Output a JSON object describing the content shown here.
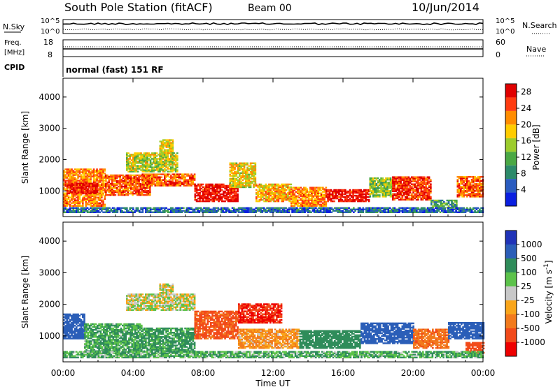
{
  "header": {
    "station": "South Pole Station (fitACF)",
    "beam": "Beam 00",
    "date": "10/Jun/2014"
  },
  "noise_panel": {
    "left_label": "N.Sky",
    "right_label": "N.Search",
    "left_ticks": [
      "10^5",
      "10^0"
    ],
    "right_ticks": [
      "10^5",
      "10^0"
    ]
  },
  "freq_panel": {
    "left_label_1": "Freq.",
    "left_label_2": "[MHz]",
    "right_label": "Nave",
    "left_ticks": [
      "18",
      "8"
    ],
    "right_ticks": [
      "60",
      "0"
    ]
  },
  "cpid_panel": {
    "label": "CPID",
    "text": "normal (fast) 151 RF"
  },
  "colors": {
    "power_scale": [
      "#0a1fe0",
      "#2a5cc0",
      "#2c8a6a",
      "#4aa844",
      "#9ccc2c",
      "#ffcc00",
      "#ff8c00",
      "#ff3b10",
      "#e00000"
    ],
    "velocity_scale": [
      "#ee0000",
      "#f24a1a",
      "#f27a1c",
      "#f9a51a",
      "#c8c8c8",
      "#5cc24a",
      "#2f8c5a",
      "#2b5eb8",
      "#2033b8"
    ]
  },
  "chart_data": [
    {
      "type": "heatmap",
      "title": "Power",
      "ylabel": "Slant Range [km]",
      "xlabel": "Time UT",
      "x_ticks": [
        "00:00",
        "04:00",
        "08:00",
        "12:00",
        "16:00",
        "20:00",
        "00:00"
      ],
      "xlim_hours": [
        0,
        24
      ],
      "ylim_km": [
        180,
        4600
      ],
      "y_ticks": [
        1000,
        2000,
        3000,
        4000
      ],
      "colorbar": {
        "label": "Power [dB]",
        "ticks": [
          4,
          8,
          12,
          16,
          20,
          24,
          28
        ],
        "range": [
          0,
          30
        ]
      },
      "echo_regions": [
        {
          "t0": 0.0,
          "t1": 2.4,
          "r0": 500,
          "r1": 1700,
          "v": 22
        },
        {
          "t0": 0.2,
          "t1": 2.0,
          "r0": 900,
          "r1": 1250,
          "v": 28
        },
        {
          "t0": 2.4,
          "t1": 5.0,
          "r0": 850,
          "r1": 1500,
          "v": 24
        },
        {
          "t0": 3.6,
          "t1": 6.5,
          "r0": 1600,
          "r1": 2200,
          "v": 16
        },
        {
          "t0": 5.5,
          "t1": 6.3,
          "r0": 2200,
          "r1": 2650,
          "v": 18
        },
        {
          "t0": 4.5,
          "t1": 7.5,
          "r0": 1150,
          "r1": 1550,
          "v": 24
        },
        {
          "t0": 7.5,
          "t1": 10.0,
          "r0": 650,
          "r1": 1200,
          "v": 28
        },
        {
          "t0": 9.5,
          "t1": 11.0,
          "r0": 1100,
          "r1": 1900,
          "v": 18
        },
        {
          "t0": 11.0,
          "t1": 13.0,
          "r0": 650,
          "r1": 1200,
          "v": 20
        },
        {
          "t0": 13.0,
          "t1": 15.0,
          "r0": 500,
          "r1": 1100,
          "v": 22
        },
        {
          "t0": 15.0,
          "t1": 17.5,
          "r0": 650,
          "r1": 1050,
          "v": 28
        },
        {
          "t0": 17.5,
          "t1": 18.8,
          "r0": 800,
          "r1": 1400,
          "v": 14
        },
        {
          "t0": 18.8,
          "t1": 21.0,
          "r0": 700,
          "r1": 1450,
          "v": 26
        },
        {
          "t0": 21.0,
          "t1": 22.5,
          "r0": 450,
          "r1": 700,
          "v": 10
        },
        {
          "t0": 22.5,
          "t1": 24.0,
          "r0": 800,
          "r1": 1450,
          "v": 24
        },
        {
          "t0": 0.0,
          "t1": 24.0,
          "r0": 300,
          "r1": 450,
          "v": 6
        }
      ]
    },
    {
      "type": "heatmap",
      "title": "Velocity",
      "ylabel": "Slant Range [km]",
      "xlabel": "Time UT",
      "x_ticks": [
        "00:00",
        "04:00",
        "08:00",
        "12:00",
        "16:00",
        "20:00",
        "00:00"
      ],
      "xlim_hours": [
        0,
        24
      ],
      "ylim_km": [
        180,
        4600
      ],
      "y_ticks": [
        1000,
        2000,
        3000,
        4000
      ],
      "colorbar": {
        "label": "Velocity [m s^-1]",
        "ticks": [
          1000,
          500,
          100,
          25,
          -25,
          -100,
          -500,
          -1000
        ],
        "range": [
          -1000,
          1000
        ]
      },
      "echo_regions": [
        {
          "t0": 0.0,
          "t1": 1.2,
          "r0": 900,
          "r1": 1700,
          "v": 800
        },
        {
          "t0": 1.2,
          "t1": 4.5,
          "r0": 500,
          "r1": 1400,
          "v": 120
        },
        {
          "t0": 3.6,
          "t1": 7.5,
          "r0": 1800,
          "r1": 2300,
          "v": 0
        },
        {
          "t0": 5.5,
          "t1": 6.3,
          "r0": 2300,
          "r1": 2650,
          "v": 0
        },
        {
          "t0": 4.5,
          "t1": 7.5,
          "r0": 500,
          "r1": 1250,
          "v": 150
        },
        {
          "t0": 7.5,
          "t1": 10.0,
          "r0": 900,
          "r1": 1800,
          "v": -300
        },
        {
          "t0": 10.0,
          "t1": 12.5,
          "r0": 1400,
          "r1": 2000,
          "v": -500
        },
        {
          "t0": 10.0,
          "t1": 13.5,
          "r0": 600,
          "r1": 1200,
          "v": -100
        },
        {
          "t0": 13.5,
          "t1": 17.0,
          "r0": 600,
          "r1": 1150,
          "v": 200
        },
        {
          "t0": 17.0,
          "t1": 20.0,
          "r0": 750,
          "r1": 1400,
          "v": 600
        },
        {
          "t0": 20.0,
          "t1": 22.0,
          "r0": 600,
          "r1": 1200,
          "v": -200
        },
        {
          "t0": 22.0,
          "t1": 24.0,
          "r0": 900,
          "r1": 1400,
          "v": 700
        },
        {
          "t0": 23.0,
          "t1": 24.0,
          "r0": 450,
          "r1": 800,
          "v": -400
        },
        {
          "t0": 0.0,
          "t1": 24.0,
          "r0": 300,
          "r1": 500,
          "v": 100
        }
      ]
    }
  ]
}
